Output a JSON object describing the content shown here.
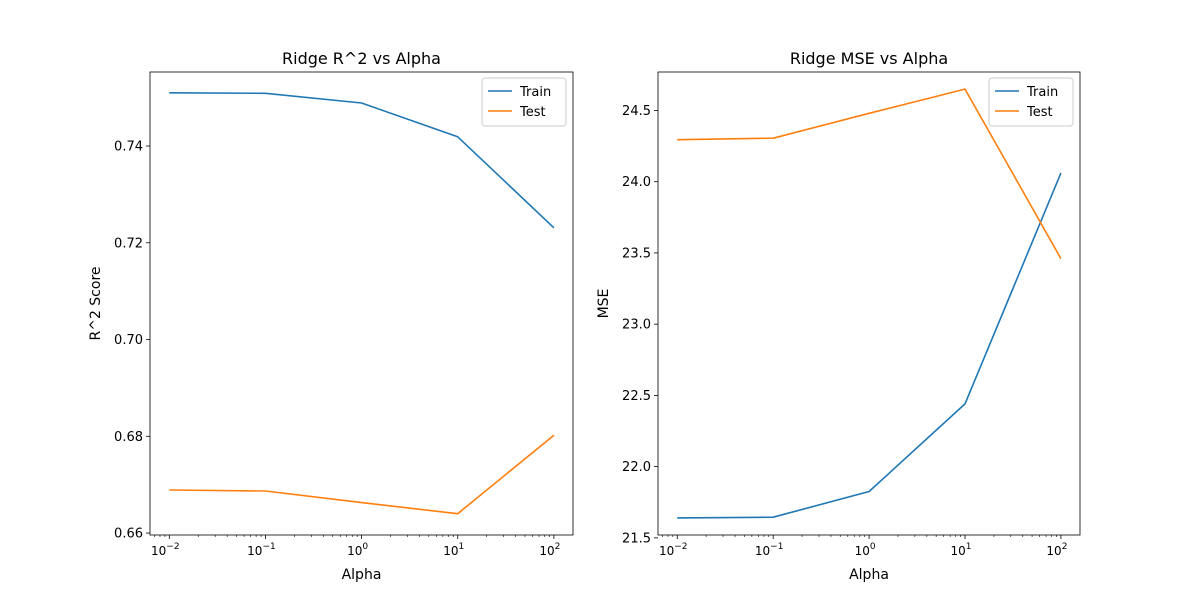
{
  "chart_data": [
    {
      "type": "line",
      "title": "Ridge R^2 vs Alpha",
      "xlabel": "Alpha",
      "ylabel": "R^2 Score",
      "xscale": "log",
      "x": [
        0.01,
        0.1,
        1,
        10,
        100
      ],
      "xlim": [
        0.0063,
        158
      ],
      "ylim": [
        0.6596,
        0.7553
      ],
      "xticks": [
        {
          "value": 0.01,
          "base": "10",
          "exp": "−2"
        },
        {
          "value": 0.1,
          "base": "10",
          "exp": "−1"
        },
        {
          "value": 1,
          "base": "10",
          "exp": "0"
        },
        {
          "value": 10,
          "base": "10",
          "exp": "1"
        },
        {
          "value": 100,
          "base": "10",
          "exp": "2"
        }
      ],
      "yticks": [
        {
          "value": 0.66,
          "label": "0.66"
        },
        {
          "value": 0.68,
          "label": "0.68"
        },
        {
          "value": 0.7,
          "label": "0.70"
        },
        {
          "value": 0.72,
          "label": "0.72"
        },
        {
          "value": 0.74,
          "label": "0.74"
        }
      ],
      "grid": false,
      "legend_position": "top-right",
      "series": [
        {
          "name": "Train",
          "color": "#1f77b4",
          "values": [
            0.751,
            0.7509,
            0.7489,
            0.7419,
            0.7231
          ]
        },
        {
          "name": "Test",
          "color": "#ff7f0e",
          "values": [
            0.6689,
            0.6687,
            0.6663,
            0.664,
            0.6802
          ]
        }
      ]
    },
    {
      "type": "line",
      "title": "Ridge MSE vs Alpha",
      "xlabel": "Alpha",
      "ylabel": "MSE",
      "xscale": "log",
      "x": [
        0.01,
        0.1,
        1,
        10,
        100
      ],
      "xlim": [
        0.0063,
        158
      ],
      "ylim": [
        21.52,
        24.77
      ],
      "xticks": [
        {
          "value": 0.01,
          "base": "10",
          "exp": "−2"
        },
        {
          "value": 0.1,
          "base": "10",
          "exp": "−1"
        },
        {
          "value": 1,
          "base": "10",
          "exp": "0"
        },
        {
          "value": 10,
          "base": "10",
          "exp": "1"
        },
        {
          "value": 100,
          "base": "10",
          "exp": "2"
        }
      ],
      "yticks": [
        {
          "value": 21.5,
          "label": "21.5"
        },
        {
          "value": 22.0,
          "label": "22.0"
        },
        {
          "value": 22.5,
          "label": "22.5"
        },
        {
          "value": 23.0,
          "label": "23.0"
        },
        {
          "value": 23.5,
          "label": "23.5"
        },
        {
          "value": 24.0,
          "label": "24.0"
        },
        {
          "value": 24.5,
          "label": "24.5"
        }
      ],
      "grid": false,
      "legend_position": "top-right",
      "series": [
        {
          "name": "Train",
          "color": "#1f77b4",
          "values": [
            21.64,
            21.645,
            21.825,
            22.44,
            24.06
          ]
        },
        {
          "name": "Test",
          "color": "#ff7f0e",
          "values": [
            24.295,
            24.305,
            24.48,
            24.65,
            23.46
          ]
        }
      ]
    }
  ]
}
